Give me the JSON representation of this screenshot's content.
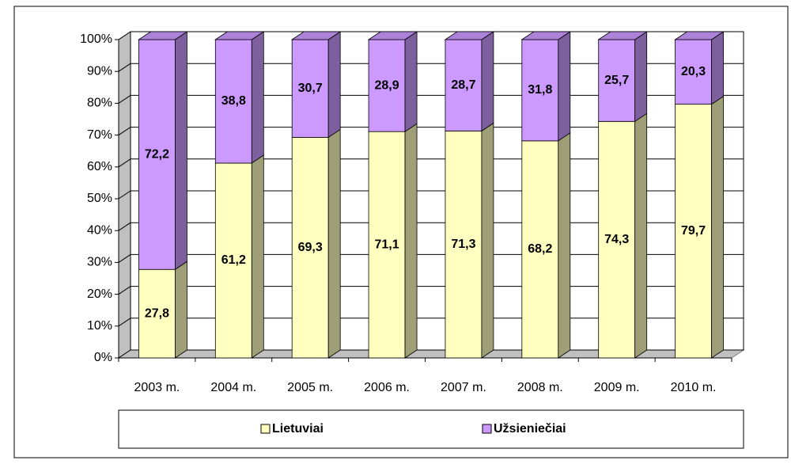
{
  "chart_data": {
    "type": "stacked_bar_3d",
    "categories": [
      "2003 m.",
      "2004 m.",
      "2005 m.",
      "2006 m.",
      "2007 m.",
      "2008 m.",
      "2009 m.",
      "2010 m."
    ],
    "series": [
      {
        "name": "Lietuviai",
        "color": "#ffffc0",
        "values": [
          27.8,
          61.2,
          69.3,
          71.1,
          71.3,
          68.2,
          74.3,
          79.7
        ],
        "value_labels": [
          "27,8",
          "61,2",
          "69,3",
          "71,1",
          "71,3",
          "68,2",
          "74,3",
          "79,7"
        ]
      },
      {
        "name": "Užsieniečiai",
        "color": "#cc99ff",
        "values": [
          72.2,
          38.8,
          30.7,
          28.9,
          28.7,
          31.8,
          25.7,
          20.3
        ],
        "value_labels": [
          "72,2",
          "38,8",
          "30,7",
          "28,9",
          "28,7",
          "31,8",
          "25,7",
          "20,3"
        ]
      }
    ],
    "ylim": [
      0,
      100
    ],
    "yticks": [
      {
        "value": 0,
        "label": "0%"
      },
      {
        "value": 10,
        "label": "10%"
      },
      {
        "value": 20,
        "label": "20%"
      },
      {
        "value": 30,
        "label": "30%"
      },
      {
        "value": 40,
        "label": "40%"
      },
      {
        "value": 50,
        "label": "50%"
      },
      {
        "value": 60,
        "label": "60%"
      },
      {
        "value": 70,
        "label": "70%"
      },
      {
        "value": 80,
        "label": "80%"
      },
      {
        "value": 90,
        "label": "90%"
      },
      {
        "value": 100,
        "label": "100%"
      }
    ],
    "grid": true,
    "legend": "bottom"
  }
}
